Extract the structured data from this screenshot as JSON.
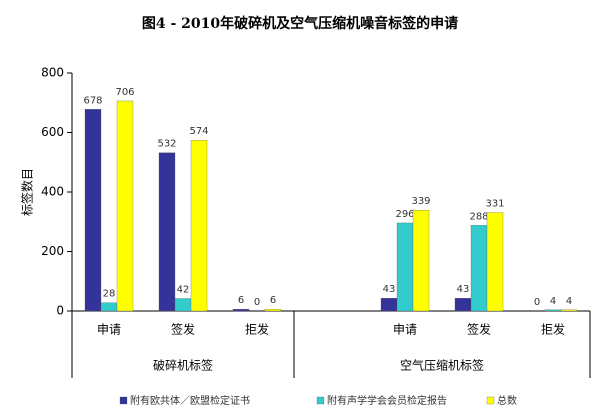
{
  "chart_data": {
    "type": "bar",
    "title": "图4 - 2010年破碎机及空气压缩机噪音标签的申请",
    "y_label": "标签数目",
    "groups": [
      {
        "name": "破碎机标签",
        "categories": [
          "申请",
          "签发",
          "拒发"
        ]
      },
      {
        "name": "空气压缩机标签",
        "categories": [
          "申请",
          "签发",
          "拒发"
        ]
      }
    ],
    "series": [
      {
        "name": "附有欧共体／欧盟检定证书",
        "color": "#333399",
        "values": [
          678,
          532,
          6,
          43,
          43,
          0
        ]
      },
      {
        "name": "附有声学学会会员检定报告",
        "color": "#33cccc",
        "values": [
          28,
          42,
          0,
          296,
          288,
          4
        ]
      },
      {
        "name": "总数",
        "color": "#ffff00",
        "values": [
          706,
          574,
          6,
          339,
          331,
          4
        ]
      }
    ],
    "ylim": [
      0,
      800
    ],
    "yticks": [
      0,
      200,
      400,
      600,
      800
    ],
    "grid": false,
    "data_labels": true
  }
}
